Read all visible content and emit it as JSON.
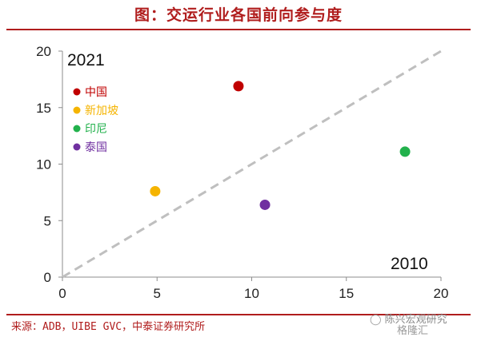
{
  "header": {
    "title": "图：交运行业各国前向参与度"
  },
  "footer": {
    "source": "来源：ADB，UIBE GVC，中泰证券研究所",
    "watermark_channel": "陈兴宏观研究",
    "watermark_logo": "格隆汇"
  },
  "chart_data": {
    "type": "scatter",
    "xlabel": "2010",
    "ylabel": "2021",
    "xlim": [
      0,
      20
    ],
    "ylim": [
      0,
      20
    ],
    "xticks": [
      0,
      5,
      10,
      15,
      20
    ],
    "yticks": [
      0,
      5,
      10,
      15,
      20
    ],
    "grid": false,
    "legend_position": "top-left",
    "reference_line": {
      "from": [
        0,
        0
      ],
      "to": [
        20,
        20
      ],
      "style": "dashed",
      "color": "#bfbfbf"
    },
    "series": [
      {
        "name": "中国",
        "x": 9.3,
        "y": 16.9,
        "color": "#c00000"
      },
      {
        "name": "新加坡",
        "x": 4.9,
        "y": 7.6,
        "color": "#f5b400"
      },
      {
        "name": "印尼",
        "x": 18.1,
        "y": 11.1,
        "color": "#22b14c"
      },
      {
        "name": "泰国",
        "x": 10.7,
        "y": 6.4,
        "color": "#7030a0"
      }
    ]
  }
}
